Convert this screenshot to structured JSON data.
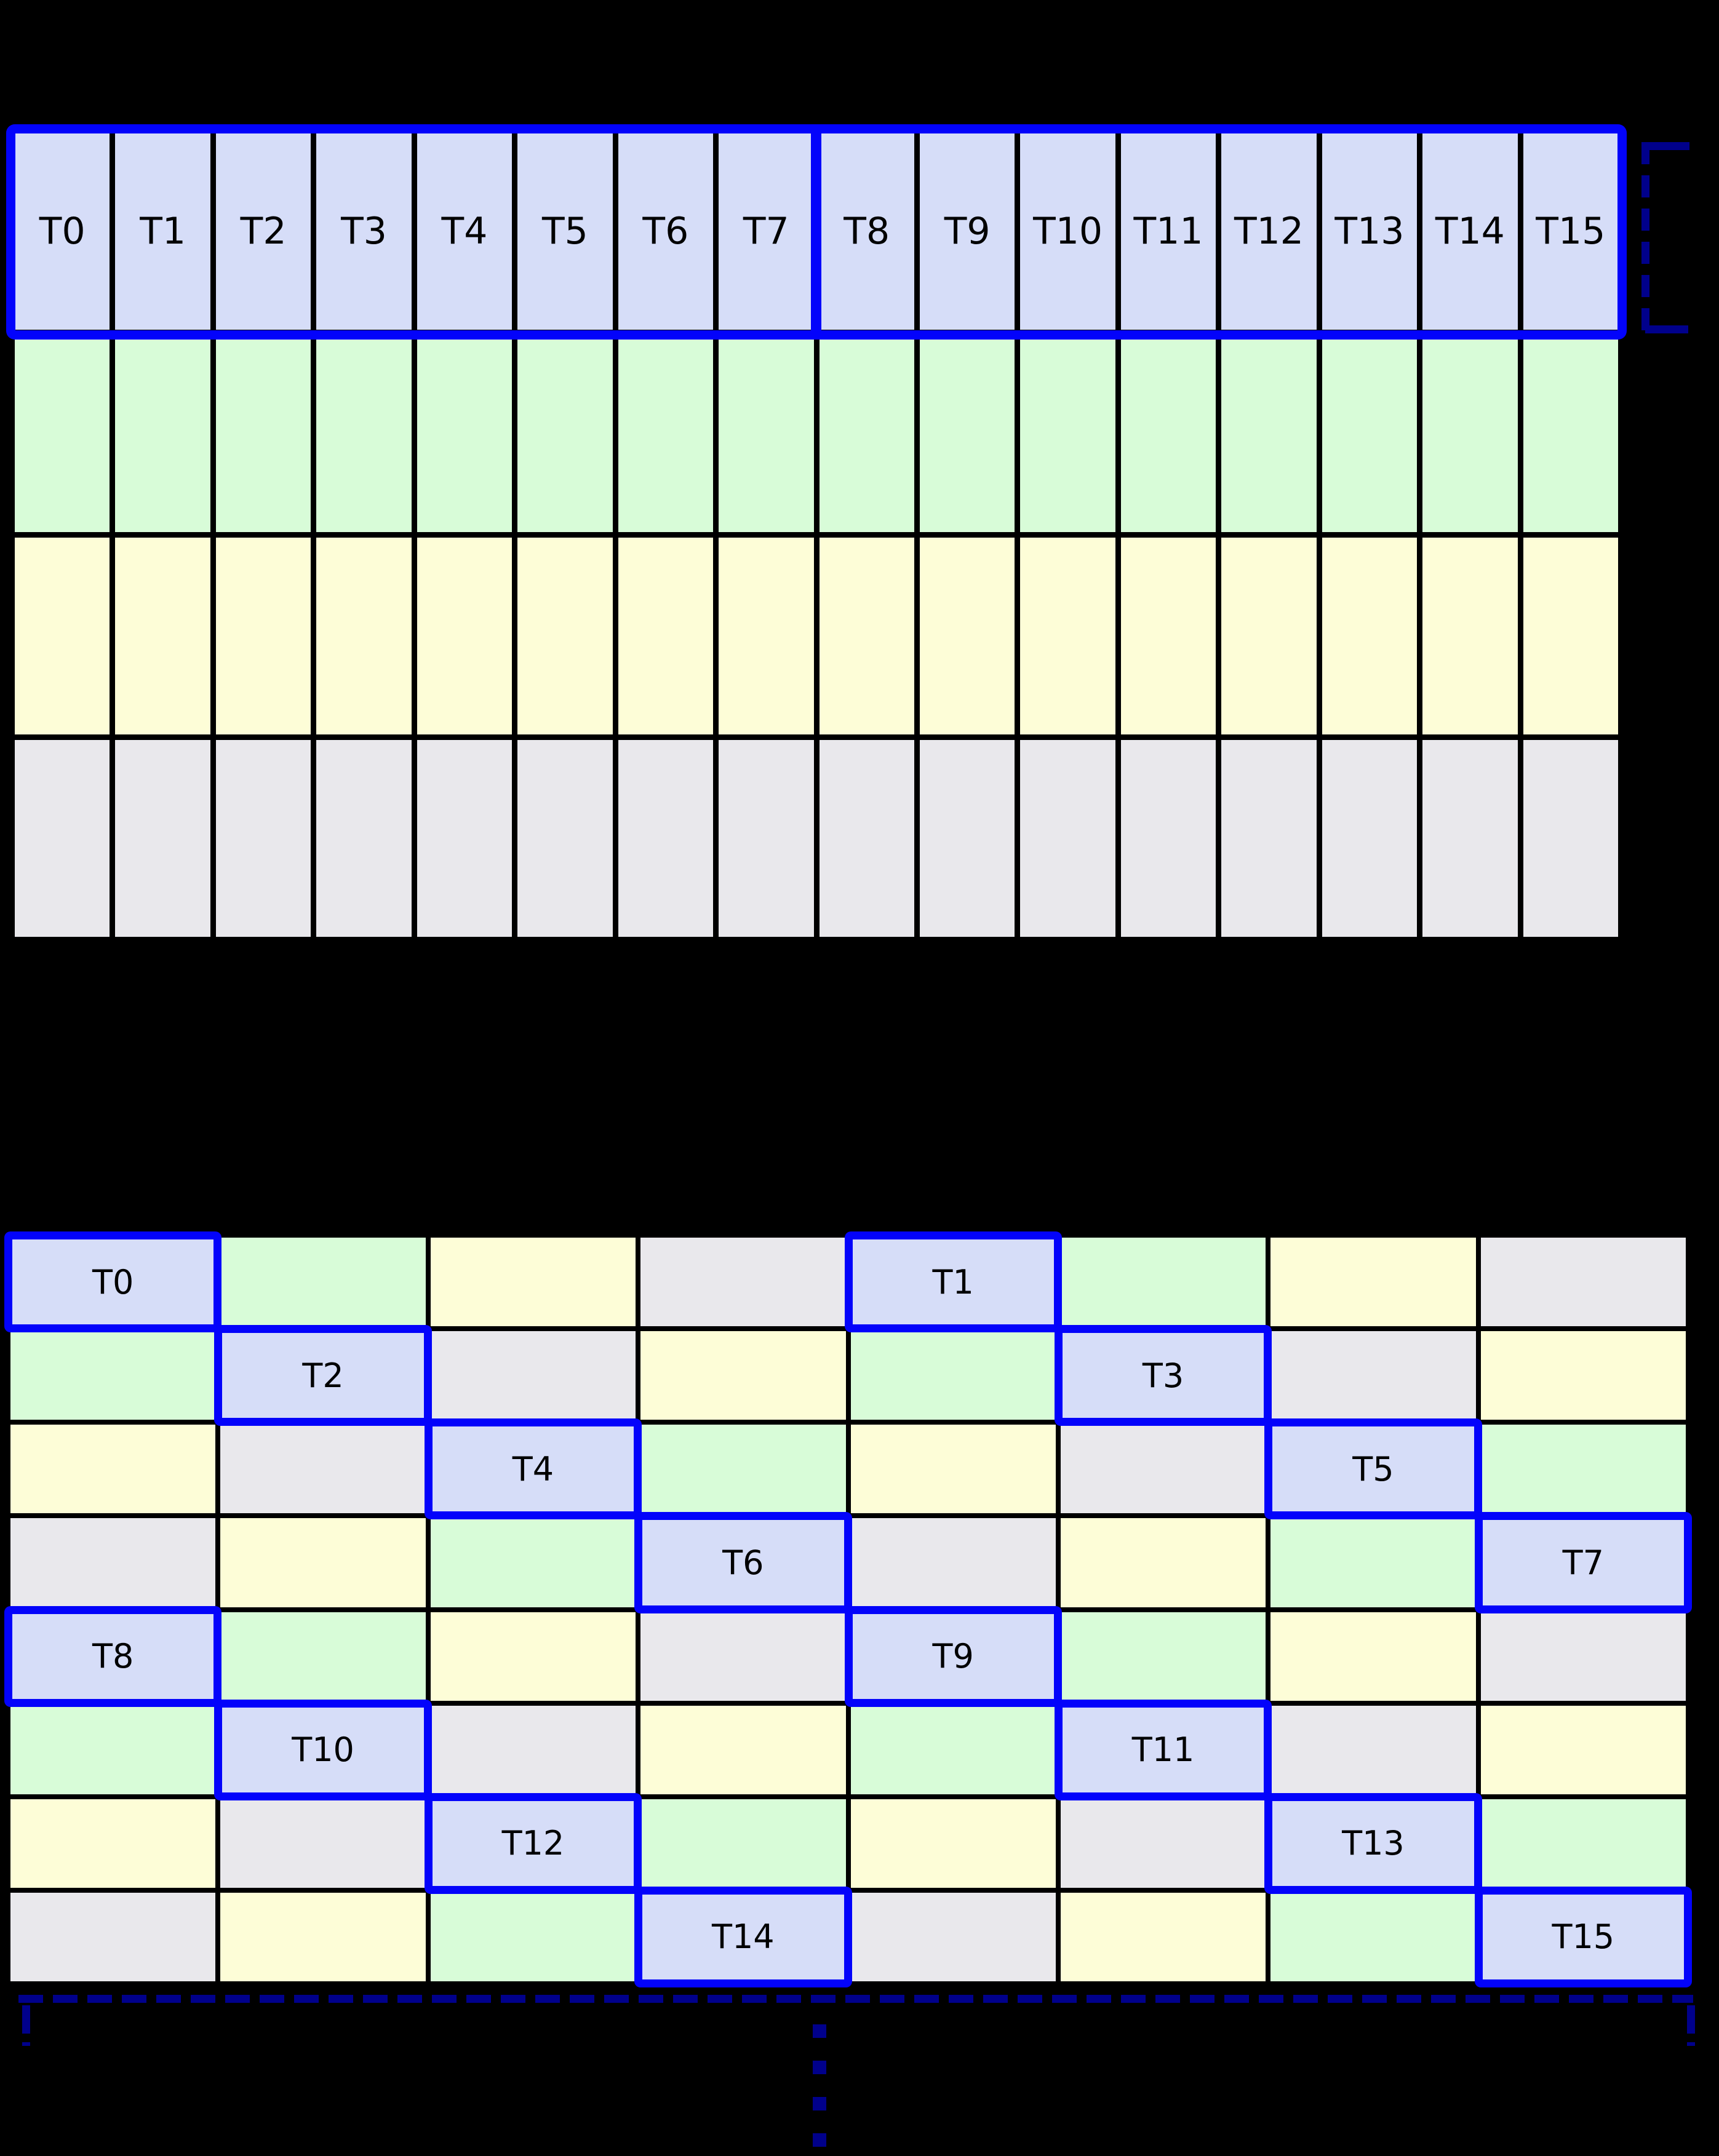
{
  "colors": {
    "background": "#000000",
    "grid_line": "#000000",
    "cell_lavender": "#d6ddf8",
    "cell_green": "#d8fcd8",
    "cell_yellow": "#fdfdd7",
    "cell_gray": "#e9e8ec",
    "highlight_blue": "#0303fb",
    "bracket_navy": "#00008b",
    "label_text": "#000000"
  },
  "top_grid": {
    "columns": 16,
    "rows": 4,
    "thread_row_labels": [
      "T0",
      "T1",
      "T2",
      "T3",
      "T4",
      "T5",
      "T6",
      "T7",
      "T8",
      "T9",
      "T10",
      "T11",
      "T12",
      "T13",
      "T14",
      "T15"
    ],
    "row_fills": [
      "lavender",
      "green",
      "yellow",
      "gray"
    ],
    "half_warp_split_after_column": 8
  },
  "bottom_grid": {
    "columns": 8,
    "rows": 8,
    "cells": [
      [
        {
          "fill": "lavender",
          "label": "T0"
        },
        {
          "fill": "green"
        },
        {
          "fill": "yellow"
        },
        {
          "fill": "gray"
        },
        {
          "fill": "lavender",
          "label": "T1"
        },
        {
          "fill": "green"
        },
        {
          "fill": "yellow"
        },
        {
          "fill": "gray"
        }
      ],
      [
        {
          "fill": "green"
        },
        {
          "fill": "lavender",
          "label": "T2"
        },
        {
          "fill": "gray"
        },
        {
          "fill": "yellow"
        },
        {
          "fill": "green"
        },
        {
          "fill": "lavender",
          "label": "T3"
        },
        {
          "fill": "gray"
        },
        {
          "fill": "yellow"
        }
      ],
      [
        {
          "fill": "yellow"
        },
        {
          "fill": "gray"
        },
        {
          "fill": "lavender",
          "label": "T4"
        },
        {
          "fill": "green"
        },
        {
          "fill": "yellow"
        },
        {
          "fill": "gray"
        },
        {
          "fill": "lavender",
          "label": "T5"
        },
        {
          "fill": "green"
        }
      ],
      [
        {
          "fill": "gray"
        },
        {
          "fill": "yellow"
        },
        {
          "fill": "green"
        },
        {
          "fill": "lavender",
          "label": "T6"
        },
        {
          "fill": "gray"
        },
        {
          "fill": "yellow"
        },
        {
          "fill": "green"
        },
        {
          "fill": "lavender",
          "label": "T7"
        }
      ],
      [
        {
          "fill": "lavender",
          "label": "T8"
        },
        {
          "fill": "green"
        },
        {
          "fill": "yellow"
        },
        {
          "fill": "gray"
        },
        {
          "fill": "lavender",
          "label": "T9"
        },
        {
          "fill": "green"
        },
        {
          "fill": "yellow"
        },
        {
          "fill": "gray"
        }
      ],
      [
        {
          "fill": "green"
        },
        {
          "fill": "lavender",
          "label": "T10"
        },
        {
          "fill": "gray"
        },
        {
          "fill": "yellow"
        },
        {
          "fill": "green"
        },
        {
          "fill": "lavender",
          "label": "T11"
        },
        {
          "fill": "gray"
        },
        {
          "fill": "yellow"
        }
      ],
      [
        {
          "fill": "yellow"
        },
        {
          "fill": "gray"
        },
        {
          "fill": "lavender",
          "label": "T12"
        },
        {
          "fill": "green"
        },
        {
          "fill": "yellow"
        },
        {
          "fill": "gray"
        },
        {
          "fill": "lavender",
          "label": "T13"
        },
        {
          "fill": "green"
        }
      ],
      [
        {
          "fill": "gray"
        },
        {
          "fill": "yellow"
        },
        {
          "fill": "green"
        },
        {
          "fill": "lavender",
          "label": "T14"
        },
        {
          "fill": "gray"
        },
        {
          "fill": "yellow"
        },
        {
          "fill": "green"
        },
        {
          "fill": "lavender",
          "label": "T15"
        }
      ]
    ]
  },
  "continuation_ellipsis": {
    "dot_count": 4
  }
}
